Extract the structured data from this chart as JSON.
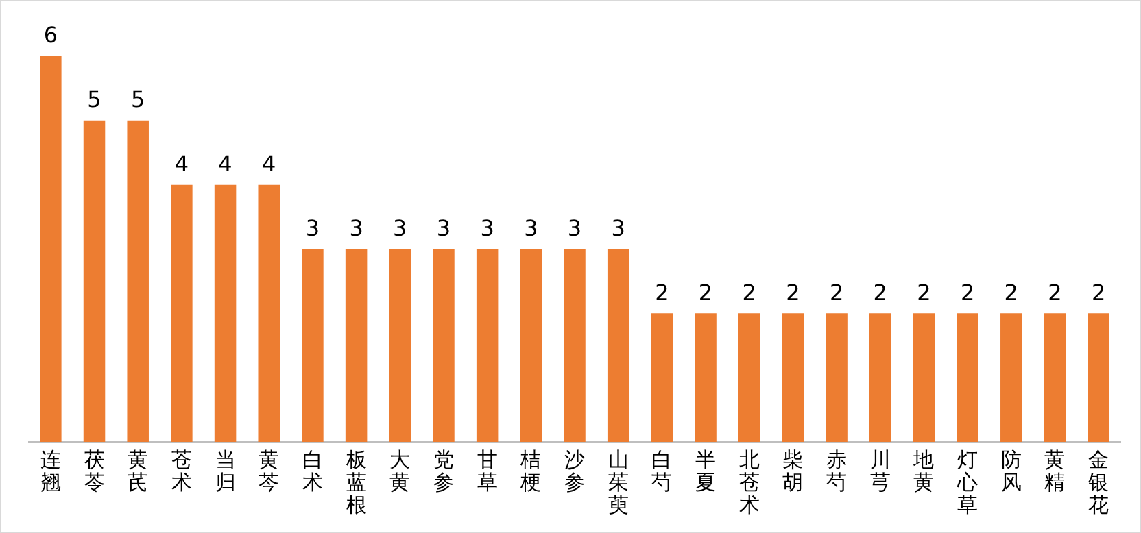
{
  "chart_data": {
    "type": "bar",
    "categories": [
      "连翘",
      "茯苓",
      "黄芪",
      "苍术",
      "当归",
      "黄芩",
      "白术",
      "板蓝根",
      "大黄",
      "党参",
      "甘草",
      "桔梗",
      "沙参",
      "山茱萸",
      "白芍",
      "半夏",
      "北苍术",
      "柴胡",
      "赤芍",
      "川芎",
      "地黄",
      "灯心草",
      "防风",
      "黄精",
      "金银花"
    ],
    "values": [
      6,
      5,
      5,
      4,
      4,
      4,
      3,
      3,
      3,
      3,
      3,
      3,
      3,
      3,
      2,
      2,
      2,
      2,
      2,
      2,
      2,
      2,
      2,
      2,
      2
    ],
    "color": "#ed7d31",
    "data_labels": true,
    "tick_labels": "x",
    "grid": false,
    "legend": false
  }
}
